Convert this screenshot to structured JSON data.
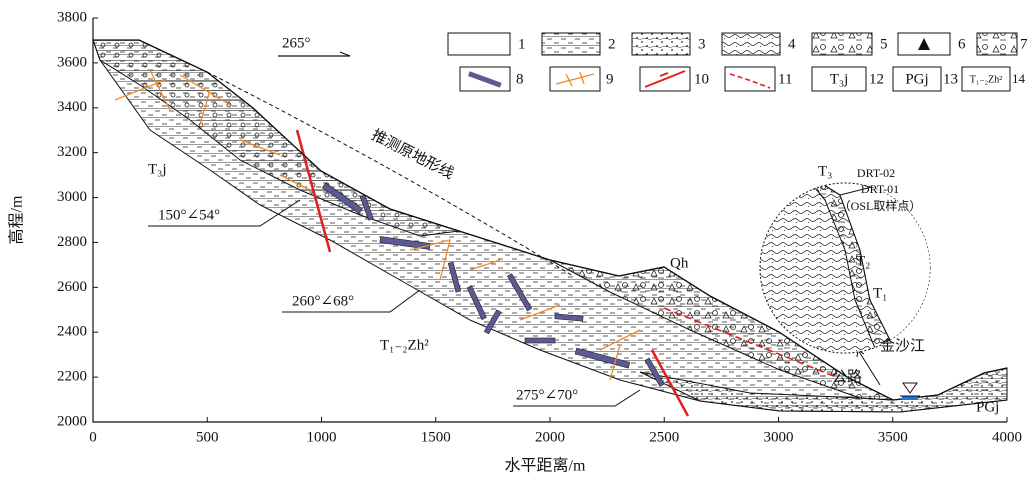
{
  "axes": {
    "xlabel": "水平距离/m",
    "ylabel": "高程/m",
    "xlim": [
      0,
      4000
    ],
    "ylim": [
      2000,
      3800
    ],
    "xticks": [
      0,
      500,
      1000,
      1500,
      2000,
      2500,
      3000,
      3500,
      4000
    ],
    "yticks": [
      2000,
      2200,
      2400,
      2600,
      2800,
      3000,
      3200,
      3400,
      3600,
      3800
    ]
  },
  "legend": {
    "numbers": [
      "1",
      "2",
      "3",
      "4",
      "5",
      "6",
      "7",
      "8",
      "9",
      "10",
      "11",
      "12",
      "13",
      "14"
    ],
    "box_labels": [
      "T₃j",
      "PGj",
      "T₁₋₂Zh²"
    ]
  },
  "annotations": {
    "direction": "265°",
    "inferred_surface": "推测原地形线",
    "t3j": "T₃j",
    "attitude_1": "150°∠54°",
    "attitude_2": "260°∠68°",
    "t12zh2": "T₁₋₂Zh²",
    "attitude_3": "275°∠70°",
    "qh": "Qh",
    "river": "金沙江",
    "road": "公路",
    "pgj": "PGj"
  },
  "inset": {
    "t3": "T₃",
    "sample_2": "DRT-02",
    "sample_1": "DRT-01",
    "sample_note": "（OSL取样点）",
    "t2": "T₂",
    "t1": "T₁"
  }
}
